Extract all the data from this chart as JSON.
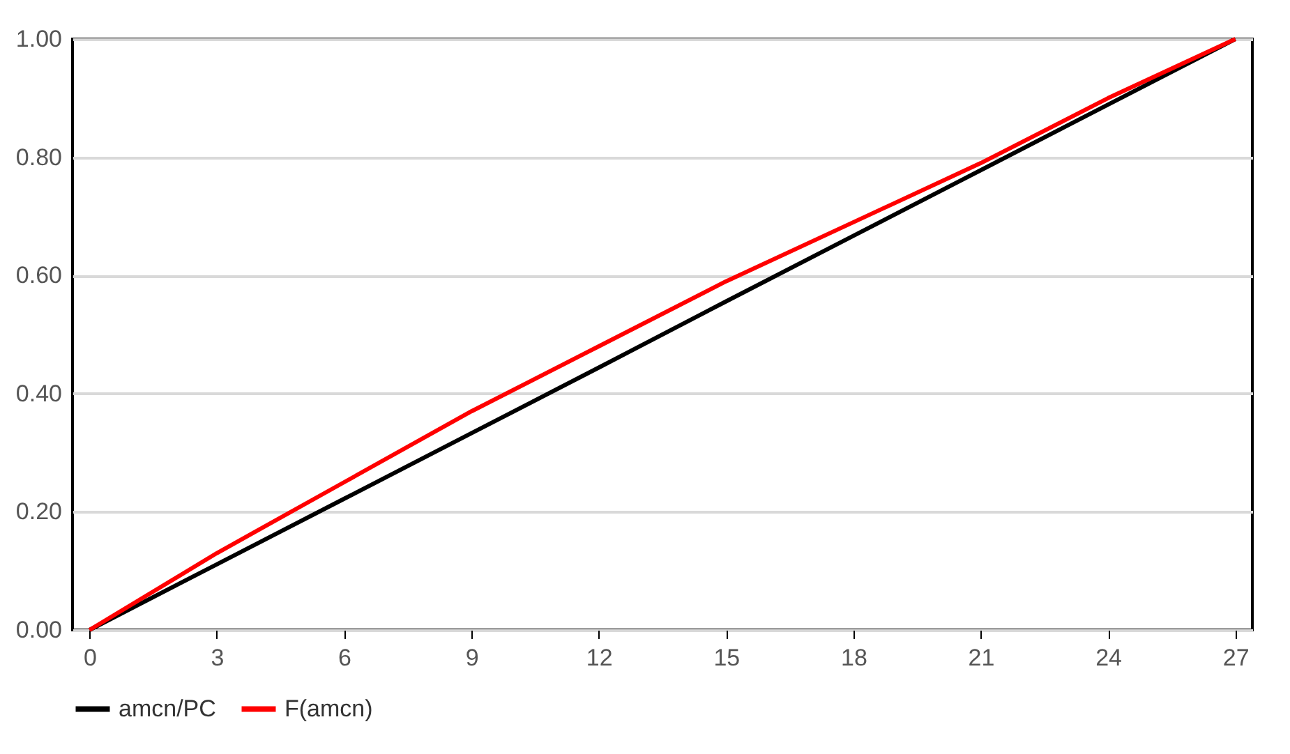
{
  "chart_data": {
    "type": "line",
    "x": [
      0,
      3,
      6,
      9,
      12,
      15,
      18,
      21,
      24,
      27
    ],
    "series": [
      {
        "name": "amcn/PC",
        "color": "#000000",
        "values": [
          0,
          0.111,
          0.222,
          0.333,
          0.444,
          0.556,
          0.667,
          0.778,
          0.889,
          1.0
        ]
      },
      {
        "name": "F(amcn)",
        "color": "#ff0000",
        "values": [
          0,
          0.13,
          0.25,
          0.37,
          0.48,
          0.59,
          0.69,
          0.79,
          0.9,
          1.0
        ]
      }
    ],
    "xlim": [
      -0.4,
      27.4
    ],
    "xticks": [
      0,
      3,
      6,
      9,
      12,
      15,
      18,
      21,
      24,
      27
    ],
    "ylim": [
      0,
      1
    ],
    "yticks": [
      {
        "value": 0,
        "label": "0.00"
      },
      {
        "value": 0.2,
        "label": "0.20"
      },
      {
        "value": 0.4,
        "label": "0.40"
      },
      {
        "value": 0.6,
        "label": "0.60"
      },
      {
        "value": 0.8,
        "label": "0.80"
      },
      {
        "value": 1,
        "label": "1.00"
      }
    ],
    "grid": "y",
    "legend": "bottom",
    "marker": "none",
    "line_style": "solid"
  }
}
